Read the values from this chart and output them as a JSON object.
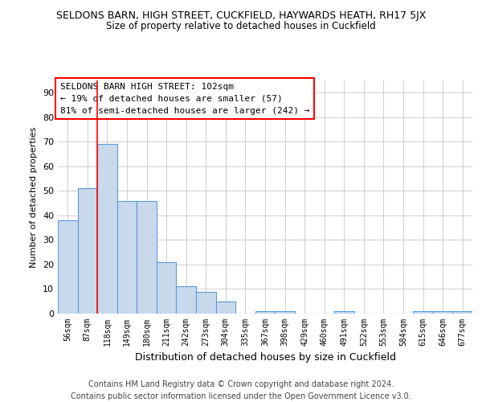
{
  "title": "SELDONS BARN, HIGH STREET, CUCKFIELD, HAYWARDS HEATH, RH17 5JX",
  "subtitle": "Size of property relative to detached houses in Cuckfield",
  "xlabel": "Distribution of detached houses by size in Cuckfield",
  "ylabel": "Number of detached properties",
  "footer_line1": "Contains HM Land Registry data © Crown copyright and database right 2024.",
  "footer_line2": "Contains public sector information licensed under the Open Government Licence v3.0.",
  "annotation_line1": "SELDONS BARN HIGH STREET: 102sqm",
  "annotation_line2": "← 19% of detached houses are smaller (57)",
  "annotation_line3": "81% of semi-detached houses are larger (242) →",
  "bar_labels": [
    "56sqm",
    "87sqm",
    "118sqm",
    "149sqm",
    "180sqm",
    "211sqm",
    "242sqm",
    "273sqm",
    "304sqm",
    "335sqm",
    "367sqm",
    "398sqm",
    "429sqm",
    "460sqm",
    "491sqm",
    "522sqm",
    "553sqm",
    "584sqm",
    "615sqm",
    "646sqm",
    "677sqm"
  ],
  "bar_values": [
    38,
    51,
    69,
    46,
    46,
    21,
    11,
    9,
    5,
    0,
    1,
    1,
    0,
    0,
    1,
    0,
    0,
    0,
    1,
    1,
    1
  ],
  "bar_color": "#c9d9ec",
  "bar_edge_color": "#5b9bd5",
  "red_line_x": 1.5,
  "ylim": [
    0,
    95
  ],
  "yticks": [
    0,
    10,
    20,
    30,
    40,
    50,
    60,
    70,
    80,
    90
  ],
  "grid_color": "#c8c8c8",
  "title_fontsize": 9,
  "subtitle_fontsize": 8.5,
  "xlabel_fontsize": 9,
  "ylabel_fontsize": 8,
  "annotation_box_color": "white",
  "annotation_box_edge_color": "red",
  "annotation_fontsize": 8,
  "footer_fontsize": 7
}
